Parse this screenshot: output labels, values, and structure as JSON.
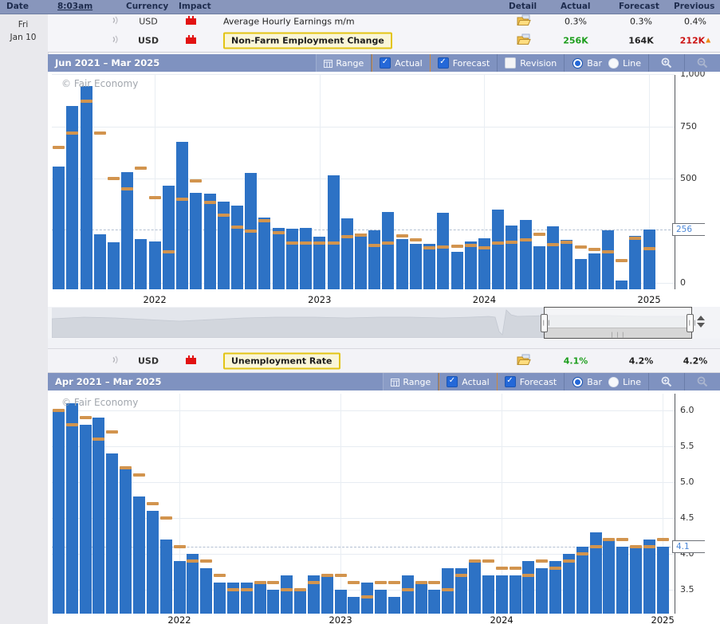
{
  "header": {
    "date": "Date",
    "time": "8:03am",
    "currency": "Currency",
    "impact": "Impact",
    "detail": "Detail",
    "actual": "Actual",
    "forecast": "Forecast",
    "previous": "Previous"
  },
  "date_cell": {
    "weekday": "Fri",
    "date": "Jan 10"
  },
  "rows": [
    {
      "currency": "USD",
      "event": "Average Hourly Earnings m/m",
      "actual": "0.3%",
      "forecast": "0.3%",
      "previous": "0.4%"
    },
    {
      "currency": "USD",
      "event": "Non-Farm Employment Change",
      "actual": "256K",
      "forecast": "164K",
      "previous": "212K",
      "revision_marker": "▲",
      "actual_color": "#1e9e1e",
      "previous_color": "#cc1111",
      "highlighted": true
    },
    {
      "currency": "USD",
      "event": "Unemployment Rate",
      "actual": "4.1%",
      "forecast": "4.2%",
      "previous": "4.2%",
      "actual_color": "#1e9e1e",
      "highlighted": true
    }
  ],
  "toolbar_labels": {
    "range": "Range",
    "actual": "Actual",
    "forecast": "Forecast",
    "revision": "Revision",
    "bar": "Bar",
    "line": "Line"
  },
  "watermark": "© Fair Economy",
  "colors": {
    "bar": "#2d72c5",
    "forecast_marker": "#d2944e",
    "good": "#1e9e1e",
    "bad": "#cc1111",
    "highlight_border": "#e3c414",
    "highlight_bg": "#faf6d8",
    "arrow_up": "#2bc50b",
    "arrow_down": "#e01212",
    "current_label": "#4b87d7"
  },
  "chart_data": [
    {
      "type": "bar",
      "title": "Jun 2021 – Mar 2025",
      "controls": {
        "actual_checked": true,
        "forecast_checked": true,
        "revision_checked": false,
        "mode": "Bar"
      },
      "slots": 46,
      "ylim": [
        -30,
        997
      ],
      "y_ticks": [
        {
          "label": "1,000",
          "value": 1000
        },
        {
          "label": "750",
          "value": 750
        },
        {
          "label": "500",
          "value": 500
        },
        {
          "label": "0",
          "value": 0
        }
      ],
      "current": {
        "label": "256",
        "value": 256
      },
      "x_ticks": [
        {
          "label": "2022",
          "slot": 7
        },
        {
          "label": "2023",
          "slot": 19
        },
        {
          "label": "2024",
          "slot": 31
        },
        {
          "label": "2025",
          "slot": 43
        }
      ],
      "series": [
        {
          "name": "Actual",
          "values": [
            559,
            850,
            943,
            235,
            194,
            531,
            210,
            199,
            467,
            678,
            431,
            428,
            390,
            372,
            528,
            315,
            263,
            261,
            263,
            223,
            517,
            311,
            236,
            253,
            339,
            209,
            187,
            187,
            336,
            150,
            199,
            216,
            353,
            275,
            303,
            175,
            272,
            206,
            114,
            142,
            254,
            12,
            227,
            256
          ]
        },
        {
          "name": "Forecast",
          "values": [
            650,
            720,
            870,
            720,
            500,
            450,
            550,
            410,
            150,
            400,
            490,
            385,
            325,
            268,
            250,
            298,
            240,
            193,
            193,
            193,
            190,
            222,
            230,
            180,
            190,
            225,
            205,
            170,
            172,
            178,
            180,
            168,
            190,
            195,
            207,
            235,
            185,
            195,
            173,
            160,
            150,
            108,
            215,
            164
          ]
        }
      ],
      "arrow": {
        "dir": "up",
        "color": "#2bc50b",
        "slot": 43
      }
    },
    {
      "type": "bar",
      "title": "Apr 2021 – Mar 2025",
      "controls": {
        "actual_checked": true,
        "forecast_checked": true,
        "mode": "Bar"
      },
      "slots": 48,
      "ylim": [
        3.17,
        6.23
      ],
      "y_ticks": [
        {
          "label": "6.0",
          "value": 6.0
        },
        {
          "label": "5.5",
          "value": 5.5
        },
        {
          "label": "5.0",
          "value": 5.0
        },
        {
          "label": "4.5",
          "value": 4.5
        },
        {
          "label": "4.0",
          "value": 4.0
        },
        {
          "label": "3.5",
          "value": 3.5
        }
      ],
      "current": {
        "label": "4.1",
        "value": 4.1
      },
      "x_ticks": [
        {
          "label": "2022",
          "slot": 9
        },
        {
          "label": "2023",
          "slot": 21
        },
        {
          "label": "2024",
          "slot": 33
        },
        {
          "label": "2025",
          "slot": 45
        }
      ],
      "series": [
        {
          "name": "Actual",
          "values": [
            6.0,
            6.1,
            5.8,
            5.9,
            5.4,
            5.2,
            4.8,
            4.6,
            4.2,
            3.9,
            4.0,
            3.8,
            3.6,
            3.6,
            3.6,
            3.6,
            3.5,
            3.7,
            3.5,
            3.7,
            3.7,
            3.5,
            3.4,
            3.6,
            3.5,
            3.4,
            3.7,
            3.6,
            3.5,
            3.8,
            3.8,
            3.9,
            3.7,
            3.7,
            3.7,
            3.9,
            3.8,
            3.9,
            4.0,
            4.1,
            4.3,
            4.2,
            4.1,
            4.1,
            4.2,
            4.1
          ]
        },
        {
          "name": "Forecast",
          "values": [
            6.0,
            5.8,
            5.9,
            5.6,
            5.7,
            5.2,
            5.1,
            4.7,
            4.5,
            4.1,
            3.9,
            3.9,
            3.7,
            3.5,
            3.5,
            3.6,
            3.6,
            3.5,
            3.5,
            3.6,
            3.7,
            3.7,
            3.6,
            3.4,
            3.6,
            3.6,
            3.5,
            3.6,
            3.6,
            3.5,
            3.7,
            3.9,
            3.9,
            3.8,
            3.8,
            3.7,
            3.9,
            3.8,
            3.9,
            4.0,
            4.1,
            4.2,
            4.2,
            4.1,
            4.1,
            4.2
          ]
        }
      ],
      "arrow": {
        "dir": "down",
        "color": "#e01212",
        "slot": 45
      }
    }
  ]
}
